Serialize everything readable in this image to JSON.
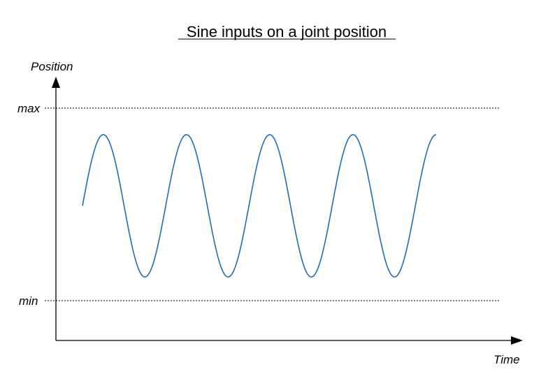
{
  "title": "Sine inputs on a joint position",
  "y_axis_label": "Position",
  "x_axis_label": "Time",
  "max_label": "max",
  "min_label": "min",
  "colors": {
    "curve": "#1f6db3",
    "axis": "#000000",
    "guide": "#000000"
  },
  "chart_data": {
    "type": "line",
    "title": "Sine inputs on a joint position",
    "xlabel": "Time",
    "ylabel": "Position",
    "y_ticks": [
      "max",
      "min"
    ],
    "series": [
      {
        "cycles": 4.25,
        "start_phase": "mid"
      }
    ]
  }
}
